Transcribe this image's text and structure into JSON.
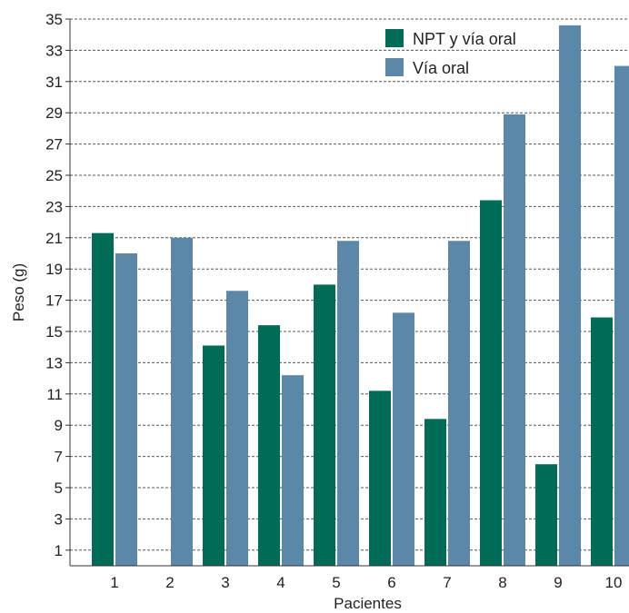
{
  "chart_data": {
    "type": "bar",
    "title": "",
    "xlabel": "Pacientes",
    "ylabel": "Peso (g)",
    "categories": [
      "1",
      "2",
      "3",
      "4",
      "5",
      "6",
      "7",
      "8",
      "9",
      "10"
    ],
    "series": [
      {
        "name": "NPT y vía oral",
        "color": "#006b57",
        "values": [
          21.3,
          null,
          14.1,
          15.4,
          18.0,
          11.2,
          9.4,
          23.4,
          6.5,
          15.9
        ]
      },
      {
        "name": "Vía oral",
        "color": "#5b87a8",
        "values": [
          20.0,
          21.0,
          17.6,
          12.2,
          20.8,
          16.2,
          20.8,
          28.9,
          34.6,
          32.0
        ]
      }
    ],
    "ylim": [
      0,
      35
    ],
    "yticks": [
      1,
      3,
      5,
      7,
      9,
      11,
      13,
      15,
      17,
      19,
      21,
      23,
      25,
      27,
      29,
      31,
      33,
      35
    ],
    "grid": true,
    "legend_position": "top-right"
  }
}
